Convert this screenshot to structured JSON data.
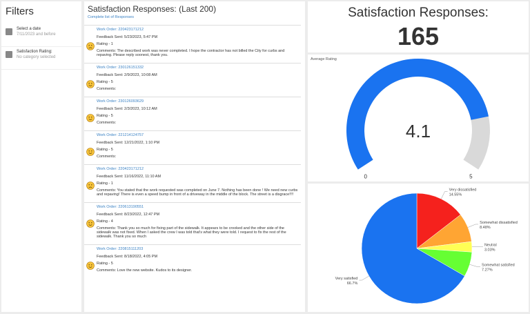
{
  "filters": {
    "title": "Filters",
    "items": [
      {
        "label": "Select a date",
        "detail": "7/11/2023 and before"
      },
      {
        "label": "Satisfaction Rating:",
        "detail": "No category selected"
      }
    ]
  },
  "responses": {
    "title": "Satisfaction Responses: (Last 200)",
    "link": "Complete list of Responses",
    "items": [
      {
        "work_order": "Work Order: 220423171212",
        "feedback_sent": "Feedback Sent: 5/23/2023, 5:47 PM",
        "rating": "Rating - 1",
        "comments": "Comments: The described work was never completed. I hope the contractor has not billed the City for curbs and repaving. Please reply soonest, thank you."
      },
      {
        "work_order": "Work Order: 230126151332",
        "feedback_sent": "Feedback Sent: 2/9/2023, 10:08 AM",
        "rating": "Rating - 5",
        "comments": "Comments:"
      },
      {
        "work_order": "Work Order: 230126093629",
        "feedback_sent": "Feedback Sent: 2/3/2023, 10:12 AM",
        "rating": "Rating - 5",
        "comments": "Comments:"
      },
      {
        "work_order": "Work Order: 221214124757",
        "feedback_sent": "Feedback Sent: 12/21/2022, 1:10 PM",
        "rating": "Rating - 5",
        "comments": "Comments:"
      },
      {
        "work_order": "Work Order: 220423171212",
        "feedback_sent": "Feedback Sent: 11/16/2022, 11:10 AM",
        "rating": "Rating - 1",
        "comments": "Comments: You stated that the work requested was completed on June 7. Nothing has been done ! We need new curbs and repaving! There is even a speed bump in front of a driveway in the middle of the block. The street is a disgrace!!!!"
      },
      {
        "work_order": "Work Order: 220613190551",
        "feedback_sent": "Feedback Sent: 8/23/2022, 12:47 PM",
        "rating": "Rating - 4",
        "comments": "Comments: Thank you so much for fixing part of the sidewalk. It appears to be crooked and the other side of the sidewalk was not fixed. When I asked the crew I was told that's what they were told. I request to fix the rest of the sidewalk. Thank you so much"
      },
      {
        "work_order": "Work Order: 220815111203",
        "feedback_sent": "Feedback Sent: 8/18/2022, 4:05 PM",
        "rating": "Rating - 5",
        "comments": "Comments: Love the new website. Kudos to its designer."
      }
    ]
  },
  "counter": {
    "title": "Satisfaction Responses:",
    "value": 165
  },
  "gauge": {
    "title": "Average Rating",
    "value": 4.1,
    "min": 0,
    "max": 5,
    "color": "#1a73f0",
    "track_color": "#d9d9d9"
  },
  "pie": {
    "categories": [
      "Very dissatisfied",
      "Somewhat dissatisfied",
      "Neutral",
      "Somewhat satisfied",
      "Very satisfied"
    ],
    "values": [
      14.55,
      8.48,
      3.03,
      7.27,
      66.7
    ],
    "value_labels": [
      "14.55%",
      "8.48%",
      "3.03%",
      "7.27%",
      "66.7%"
    ],
    "colors": [
      "#f5211d",
      "#ffa533",
      "#ffff55",
      "#66ff33",
      "#1a73f0"
    ]
  }
}
